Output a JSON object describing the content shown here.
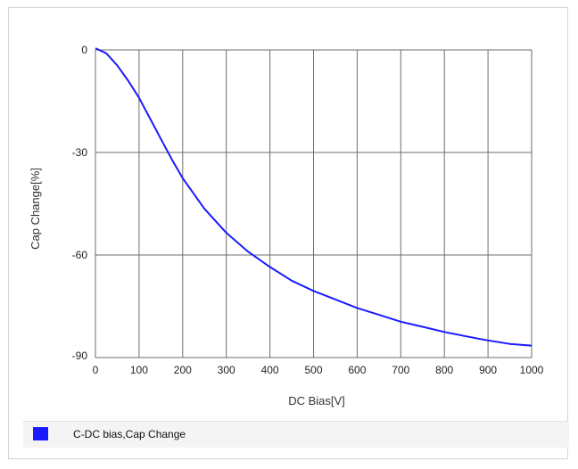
{
  "chart_data": {
    "type": "line",
    "title": "",
    "xlabel": "DC Bias[V]",
    "ylabel": "Cap Change[%]",
    "xlim": [
      0,
      1000
    ],
    "ylim": [
      -90,
      0
    ],
    "xticks": [
      "0",
      "100",
      "200",
      "300",
      "400",
      "500",
      "600",
      "700",
      "800",
      "900",
      "1000"
    ],
    "yticks": [
      "0",
      "-30",
      "-60",
      "-90"
    ],
    "grid": true,
    "legend_position": "bottom",
    "series": [
      {
        "name": "C-DC bias,Cap Change",
        "color": "#1a1aff",
        "x": [
          0,
          25,
          50,
          75,
          100,
          125,
          150,
          175,
          200,
          250,
          300,
          350,
          400,
          450,
          500,
          550,
          600,
          650,
          700,
          750,
          800,
          850,
          900,
          950,
          1000
        ],
        "y": [
          0.5,
          -1,
          -4.5,
          -9,
          -14,
          -20,
          -26,
          -32,
          -37.5,
          -46.5,
          -53.5,
          -59,
          -63.5,
          -67.5,
          -70.5,
          -73,
          -75.5,
          -77.5,
          -79.5,
          -81,
          -82.5,
          -83.8,
          -85,
          -86,
          -86.5
        ]
      }
    ]
  }
}
